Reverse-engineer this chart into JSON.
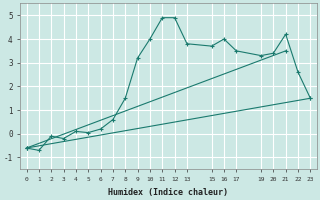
{
  "background_color": "#cce8e4",
  "grid_color": "#b0d4d0",
  "line_color": "#1a7a6e",
  "xlabel": "Humidex (Indice chaleur)",
  "xlim": [
    -0.5,
    23.5
  ],
  "ylim": [
    -1.5,
    5.5
  ],
  "xticks": [
    0,
    1,
    2,
    3,
    4,
    5,
    6,
    7,
    8,
    9,
    10,
    11,
    12,
    13,
    15,
    16,
    17,
    19,
    20,
    21,
    22,
    23
  ],
  "yticks": [
    -1,
    0,
    1,
    2,
    3,
    4,
    5
  ],
  "line1_x": [
    0,
    1,
    2,
    3,
    4,
    5,
    6,
    7,
    8,
    9,
    10,
    11,
    12,
    13,
    15,
    16,
    17,
    19,
    20,
    21,
    22,
    23
  ],
  "line1_y": [
    -0.6,
    -0.7,
    -0.1,
    -0.2,
    0.1,
    0.05,
    0.2,
    0.6,
    1.5,
    3.2,
    4.0,
    4.9,
    4.9,
    3.8,
    3.7,
    4.0,
    3.5,
    3.3,
    3.4,
    4.2,
    2.6,
    1.5
  ],
  "line2_x": [
    0,
    23
  ],
  "line2_y": [
    -0.6,
    1.5
  ],
  "line3_x": [
    0,
    21
  ],
  "line3_y": [
    -0.6,
    3.5
  ]
}
